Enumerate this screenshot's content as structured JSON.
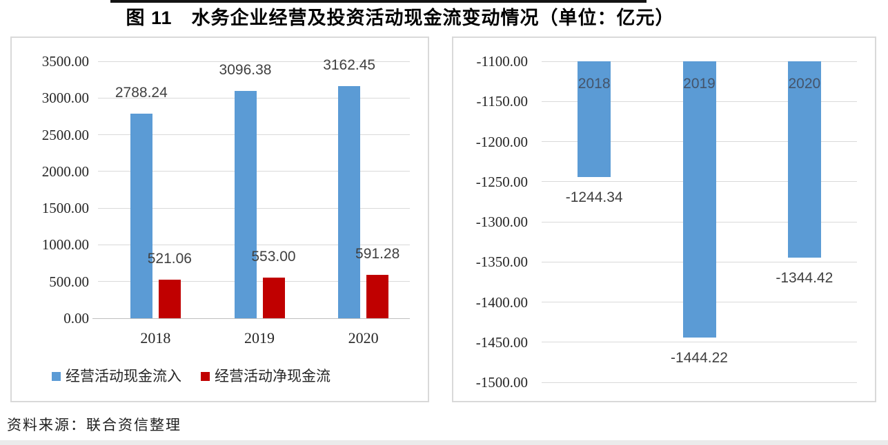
{
  "page": {
    "title": "图 11　水务企业经营及投资活动现金流变动情况（单位：亿元）",
    "source_note": "资料来源：联合资信整理"
  },
  "colors": {
    "bar_blue": "#5B9BD5",
    "bar_red": "#C00000",
    "gridline": "#D9D9D9",
    "axis_line": "#BFBFBF",
    "axis_text": "#262626",
    "data_label_text": "#404040",
    "inside_bar_label_text": "#44546A",
    "panel_border": "#D9D9D9"
  },
  "chart_data": [
    {
      "type": "bar",
      "title": "",
      "categories": [
        "2018",
        "2019",
        "2020"
      ],
      "series": [
        {
          "name": "经营活动现金流入",
          "color": "#5B9BD5",
          "values": [
            2788.24,
            3096.38,
            3162.45
          ],
          "labels": [
            "2788.24",
            "3096.38",
            "3162.45"
          ]
        },
        {
          "name": "经营活动净现金流",
          "color": "#C00000",
          "values": [
            521.06,
            553.0,
            591.28
          ],
          "labels": [
            "521.06",
            "553.00",
            "591.28"
          ]
        }
      ],
      "ylim": [
        0,
        3500
      ],
      "ytick_labels": [
        "3500.00",
        "3000.00",
        "2500.00",
        "2000.00",
        "1500.00",
        "1000.00",
        "500.00",
        "0.00"
      ],
      "grid": true,
      "legend_position": "bottom",
      "data_labels": "above-bar",
      "category_label_position": "below-axis",
      "axis_value": 0
    },
    {
      "type": "bar",
      "title": "",
      "categories": [
        "2018",
        "2019",
        "2020"
      ],
      "series": [
        {
          "name": "",
          "color": "#5B9BD5",
          "values": [
            -1244.34,
            -1444.22,
            -1344.42
          ],
          "labels": [
            "-1244.34",
            "-1444.22",
            "-1344.42"
          ]
        }
      ],
      "ylim": [
        -1500,
        -1100
      ],
      "ytick_labels": [
        "-1100.00",
        "-1150.00",
        "-1200.00",
        "-1250.00",
        "-1300.00",
        "-1350.00",
        "-1400.00",
        "-1450.00",
        "-1500.00"
      ],
      "grid": true,
      "legend_position": "none",
      "data_labels": "below-bar",
      "category_label_position": "inside-top",
      "axis_value": -1100
    }
  ]
}
